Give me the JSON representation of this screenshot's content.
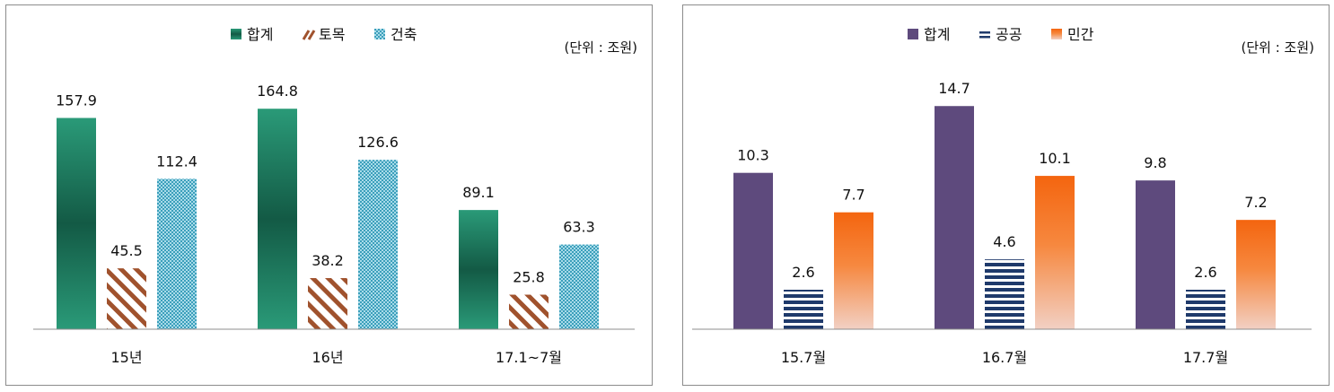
{
  "chart_data": [
    {
      "type": "bar",
      "unit_note": "(단위 : 조원)",
      "categories": [
        "15년",
        "16년",
        "17.1~7월"
      ],
      "series": [
        {
          "name": "합계",
          "values": [
            157.9,
            164.8,
            89.1
          ],
          "pattern": "gradient",
          "color": "#1f7d62"
        },
        {
          "name": "토목",
          "values": [
            45.5,
            38.2,
            25.8
          ],
          "pattern": "diagonal",
          "color": "#a0522d"
        },
        {
          "name": "건축",
          "values": [
            112.4,
            126.6,
            63.3
          ],
          "pattern": "dots",
          "color": "#4aaec8"
        }
      ],
      "ylim": [
        0,
        175
      ],
      "grid": false,
      "legend": "top-center"
    },
    {
      "type": "bar",
      "unit_note": "(단위 : 조원)",
      "categories": [
        "15.7월",
        "16.7월",
        "17.7월"
      ],
      "series": [
        {
          "name": "합계",
          "values": [
            10.3,
            14.7,
            9.8
          ],
          "pattern": "solid",
          "color": "#5e4a7d"
        },
        {
          "name": "공공",
          "values": [
            2.6,
            4.6,
            2.6
          ],
          "pattern": "horizontal",
          "color": "#1f3a6b"
        },
        {
          "name": "민간",
          "values": [
            7.7,
            10.1,
            7.2
          ],
          "pattern": "fade",
          "color": "#f4711c"
        }
      ],
      "ylim": [
        0,
        15.6
      ],
      "grid": false,
      "legend": "top-center"
    }
  ]
}
